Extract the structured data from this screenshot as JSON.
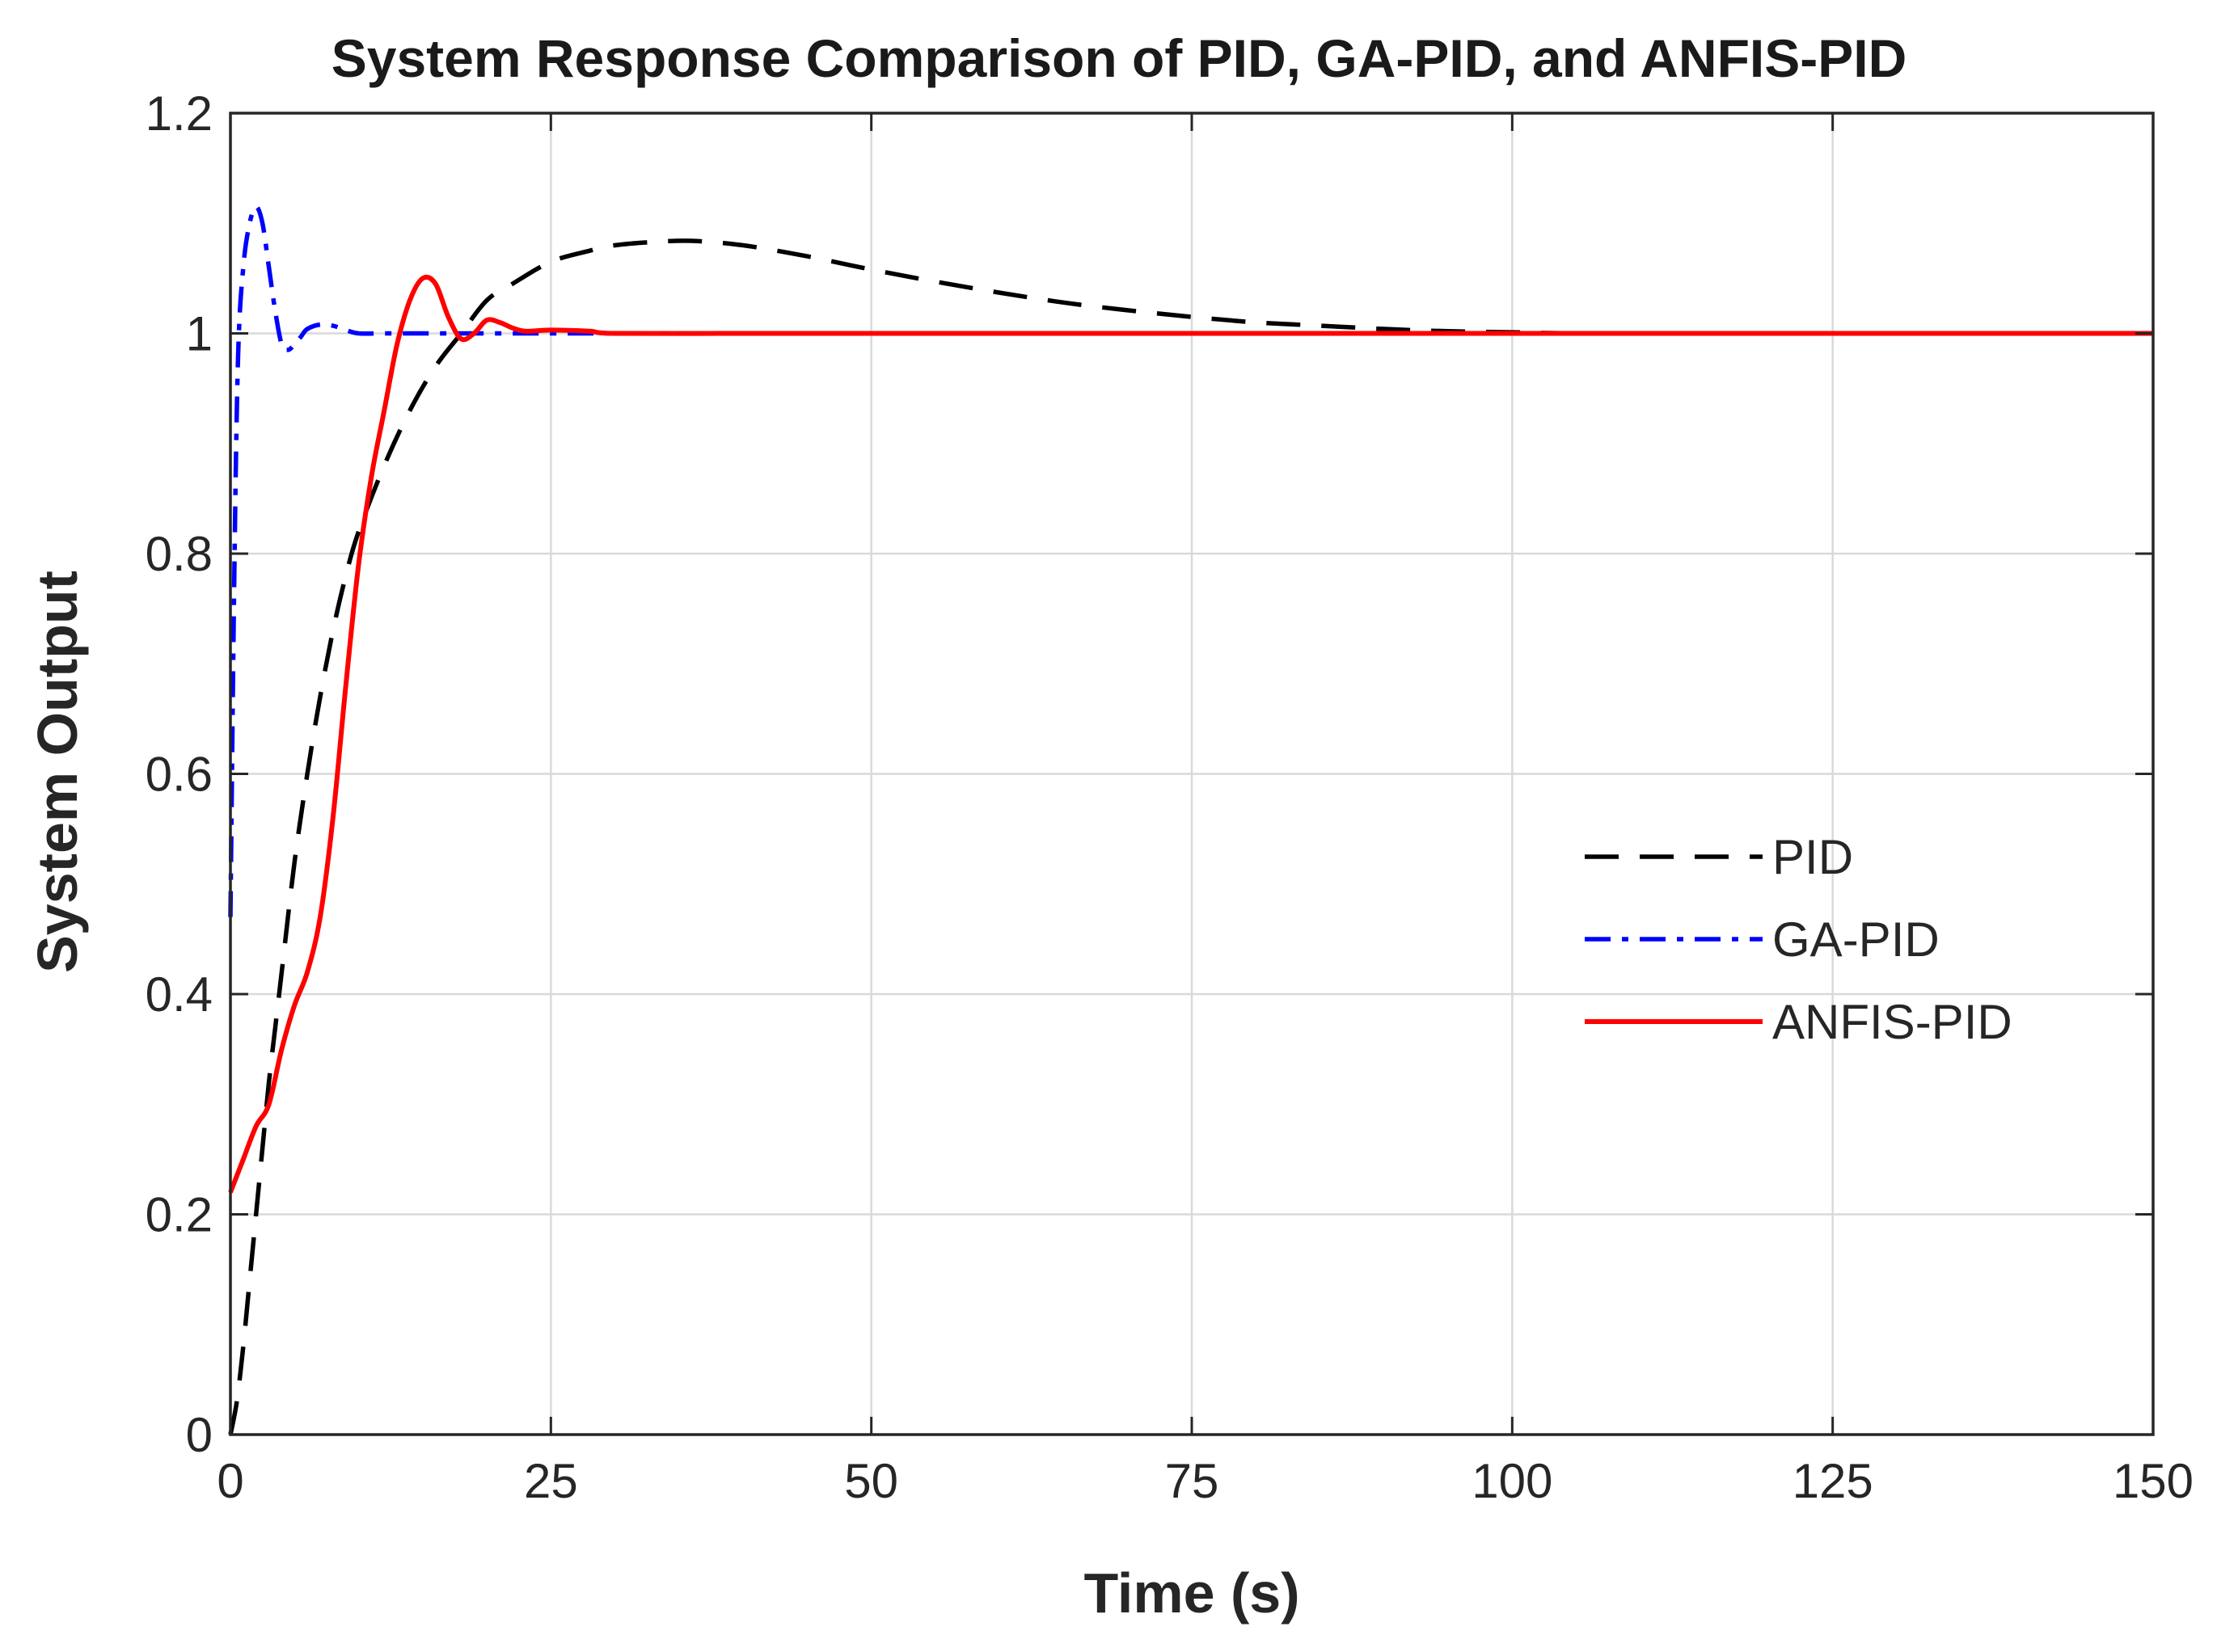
{
  "chart_data": {
    "type": "line",
    "title": "System Response Comparison of PID, GA-PID, and ANFIS-PID",
    "xlabel": "Time (s)",
    "ylabel": "System Output",
    "xlim": [
      0,
      150
    ],
    "ylim": [
      0,
      1.2
    ],
    "xticks": [
      0,
      25,
      50,
      75,
      100,
      125,
      150
    ],
    "xtick_labels": [
      "0",
      "25",
      "50",
      "75",
      "100",
      "125",
      "150"
    ],
    "yticks": [
      0,
      0.2,
      0.4,
      0.6,
      0.8,
      1,
      1.2
    ],
    "ytick_labels": [
      "0",
      "0.2",
      "0.4",
      "0.6",
      "0.8",
      "1",
      "1.2"
    ],
    "grid": true,
    "legend_position": "center-right",
    "series": [
      {
        "name": "PID",
        "color": "#000000",
        "style": "dashed",
        "x": [
          0,
          0.5,
          1,
          1.5,
          2,
          2.5,
          3,
          3.5,
          4,
          5,
          6,
          7,
          8,
          9,
          10,
          12,
          14,
          16,
          18,
          20,
          22,
          25,
          28,
          30,
          33,
          36,
          40,
          45,
          50,
          55,
          60,
          65,
          70,
          75,
          80,
          85,
          90,
          95,
          100,
          105,
          110,
          120,
          130,
          140,
          150
        ],
        "y": [
          0,
          0.03,
          0.08,
          0.14,
          0.2,
          0.26,
          0.32,
          0.37,
          0.42,
          0.52,
          0.6,
          0.67,
          0.73,
          0.78,
          0.82,
          0.88,
          0.93,
          0.97,
          1.0,
          1.03,
          1.045,
          1.065,
          1.075,
          1.08,
          1.083,
          1.084,
          1.08,
          1.07,
          1.058,
          1.047,
          1.037,
          1.028,
          1.021,
          1.015,
          1.01,
          1.007,
          1.004,
          1.002,
          1.001,
          1.0,
          1.0,
          1.0,
          1.0,
          1.0,
          1.0
        ]
      },
      {
        "name": "GA-PID",
        "color": "#0000ff",
        "style": "dashdot",
        "x": [
          0,
          0.3,
          0.6,
          1,
          1.5,
          2,
          2.5,
          3,
          3.5,
          4,
          4.5,
          5,
          5.5,
          6,
          7,
          8,
          9,
          10,
          12,
          15,
          20,
          30,
          50,
          75,
          100,
          125,
          150
        ],
        "y": [
          0.47,
          0.78,
          0.98,
          1.06,
          1.1,
          1.115,
          1.1,
          1.06,
          1.02,
          0.99,
          0.985,
          0.99,
          0.997,
          1.004,
          1.008,
          1.007,
          1.003,
          1.0,
          1.0,
          1.0,
          1.0,
          1.0,
          1.0,
          1.0,
          1.0,
          1.0,
          1.0
        ]
      },
      {
        "name": "ANFIS-PID",
        "color": "#ff0000",
        "style": "solid",
        "x": [
          0,
          1,
          2,
          3,
          4,
          5,
          6,
          7,
          8,
          9,
          10,
          11,
          12,
          13,
          14,
          15,
          16,
          17,
          18,
          19,
          20,
          21,
          22,
          23,
          25,
          28,
          30,
          40,
          50,
          75,
          100,
          125,
          150
        ],
        "y": [
          0.22,
          0.25,
          0.28,
          0.3,
          0.35,
          0.39,
          0.42,
          0.47,
          0.56,
          0.68,
          0.79,
          0.87,
          0.93,
          0.99,
          1.03,
          1.05,
          1.045,
          1.015,
          0.995,
          1.0,
          1.012,
          1.01,
          1.005,
          1.002,
          1.003,
          1.002,
          1.0,
          1.0,
          1.0,
          1.0,
          1.0,
          1.0,
          1.0
        ]
      }
    ]
  }
}
